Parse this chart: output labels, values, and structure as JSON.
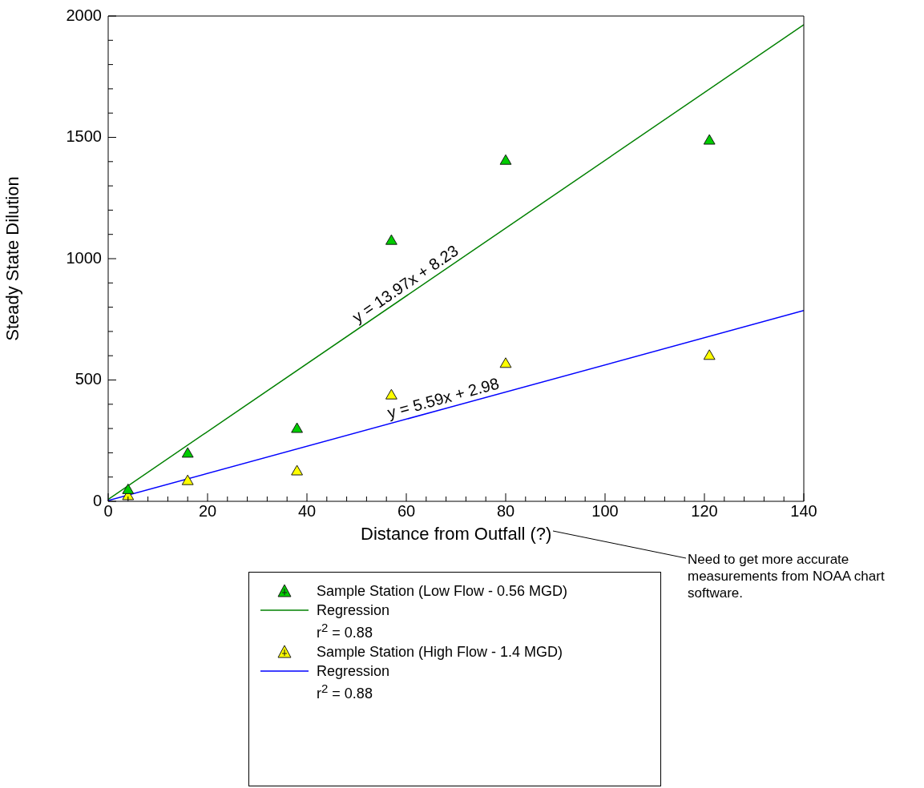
{
  "chart_data": {
    "type": "scatter",
    "xlabel": "Distance from Outfall (?)",
    "ylabel": "Steady State Dilution",
    "xlim": [
      0,
      140
    ],
    "ylim": [
      0,
      2000
    ],
    "xticks": [
      0,
      {
        "value": 4,
        "label": null
      },
      {
        "value": 8,
        "label": null
      },
      {
        "value": 12,
        "label": null
      },
      {
        "value": 16,
        "label": null
      },
      20,
      {
        "value": 24,
        "label": null
      },
      {
        "value": 28,
        "label": null
      },
      {
        "value": 32,
        "label": null
      },
      {
        "value": 36,
        "label": null
      },
      40,
      {
        "value": 44,
        "label": null
      },
      {
        "value": 48,
        "label": null
      },
      {
        "value": 52,
        "label": null
      },
      {
        "value": 56,
        "label": null
      },
      60,
      {
        "value": 64,
        "label": null
      },
      {
        "value": 68,
        "label": null
      },
      {
        "value": 72,
        "label": null
      },
      {
        "value": 76,
        "label": null
      },
      80,
      {
        "value": 84,
        "label": null
      },
      {
        "value": 88,
        "label": null
      },
      {
        "value": 92,
        "label": null
      },
      {
        "value": 96,
        "label": null
      },
      100,
      {
        "value": 104,
        "label": null
      },
      {
        "value": 108,
        "label": null
      },
      {
        "value": 112,
        "label": null
      },
      {
        "value": 116,
        "label": null
      },
      120,
      {
        "value": 124,
        "label": null
      },
      {
        "value": 128,
        "label": null
      },
      {
        "value": 132,
        "label": null
      },
      {
        "value": 136,
        "label": null
      },
      140
    ],
    "yticks": [
      0,
      {
        "value": 100,
        "label": null
      },
      {
        "value": 200,
        "label": null
      },
      {
        "value": 300,
        "label": null
      },
      {
        "value": 400,
        "label": null
      },
      500,
      {
        "value": 600,
        "label": null
      },
      {
        "value": 700,
        "label": null
      },
      {
        "value": 800,
        "label": null
      },
      {
        "value": 900,
        "label": null
      },
      1000,
      {
        "value": 1100,
        "label": null
      },
      {
        "value": 1200,
        "label": null
      },
      {
        "value": 1300,
        "label": null
      },
      {
        "value": 1400,
        "label": null
      },
      1500,
      {
        "value": 1600,
        "label": null
      },
      {
        "value": 1700,
        "label": null
      },
      {
        "value": 1800,
        "label": null
      },
      {
        "value": 1900,
        "label": null
      },
      2000
    ],
    "grid": false,
    "legend": "bottom",
    "marker": "triangle",
    "series": [
      {
        "name": "Sample Station (Low Flow - 0.56 MGD)",
        "color": "#00cc00",
        "x": [
          4,
          16,
          38,
          57,
          80,
          121
        ],
        "values": [
          45,
          195,
          297,
          1072,
          1402,
          1485
        ]
      },
      {
        "type": "line",
        "marker": "none",
        "name": "Regression\nr$^{2}$ = 0.88",
        "color": "#008000",
        "x": [
          0,
          140
        ],
        "values": [
          8,
          1964
        ]
      },
      {
        "name": "Sample Station (High Flow - 1.4 MGD)",
        "color": "#ffff00",
        "x": [
          4,
          16,
          38,
          57,
          80,
          121
        ],
        "values": [
          20,
          82,
          122,
          435,
          565,
          598
        ]
      },
      {
        "type": "line",
        "name": "Regression\nr$^{2}$ = 0.88",
        "color": "#0000ff",
        "x": [
          0,
          140
        ],
        "values": [
          3,
          786
        ],
        "marker": "none"
      }
    ],
    "annotations": [
      {
        "text": "y = 13.97x + 8.23",
        "x": 61,
        "y": 860
      },
      {
        "text": "y = 5.59x + 2.98",
        "x": 68,
        "y": 383
      },
      "Need to get more accurate measurements from NOAA chart software."
    ]
  }
}
